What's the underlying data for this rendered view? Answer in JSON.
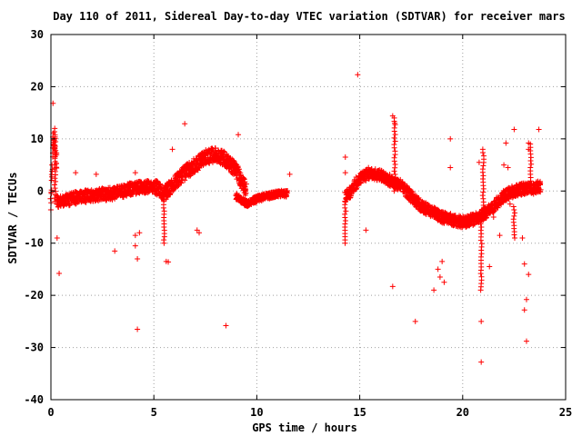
{
  "chart_data": {
    "type": "scatter",
    "title": "Day 110 of 2011, Sidereal Day-to-day VTEC variation (SDTVAR) for receiver mars",
    "xlabel": "GPS time / hours",
    "ylabel": "SDTVAR / TECUs",
    "xlim": [
      0,
      25
    ],
    "ylim": [
      -40,
      30
    ],
    "x_ticks": [
      0,
      5,
      10,
      15,
      20,
      25
    ],
    "y_ticks": [
      30,
      20,
      10,
      0,
      -10,
      -20,
      -30,
      -40
    ],
    "grid": true,
    "marker": "+",
    "colors": {
      "series": "#ff0000",
      "grid": "#a0a0a0",
      "axes": "#000000"
    },
    "band_segments": [
      {
        "x": [
          0.0,
          0.1,
          0.2,
          0.3
        ],
        "y": [
          -2.5,
          10.0,
          9.0,
          4.0
        ],
        "spread": 2.5
      },
      {
        "x": [
          0.3,
          1.0,
          2.0,
          3.0,
          4.0,
          5.0
        ],
        "y": [
          -2.0,
          -1.5,
          -0.8,
          -0.5,
          0.5,
          1.0
        ],
        "spread": 2.4
      },
      {
        "x": [
          5.0,
          5.5,
          6.0,
          6.5,
          7.0,
          7.5,
          8.0,
          8.5,
          9.0,
          9.5
        ],
        "y": [
          1.0,
          -0.5,
          1.5,
          3.5,
          5.0,
          6.5,
          7.0,
          6.0,
          4.0,
          0.0
        ],
        "spread": 2.8
      },
      {
        "x": [
          9.0,
          9.5,
          10.0,
          10.5,
          11.0,
          11.5
        ],
        "y": [
          -1.0,
          -2.5,
          -1.5,
          -1.0,
          -0.5,
          -0.5
        ],
        "spread": 1.2
      },
      {
        "x": [
          14.3,
          14.5,
          15.0,
          15.5,
          16.0,
          16.5,
          17.0,
          17.5,
          18.0,
          18.5,
          19.0
        ],
        "y": [
          -1.0,
          -0.5,
          2.5,
          3.5,
          3.0,
          2.0,
          1.0,
          -1.0,
          -3.0,
          -4.0,
          -5.0
        ],
        "spread": 2.2
      },
      {
        "x": [
          19.0,
          19.5,
          20.0,
          20.5,
          21.0,
          21.5,
          22.0,
          22.5,
          23.0,
          23.5,
          23.8
        ],
        "y": [
          -5.0,
          -5.5,
          -6.0,
          -5.5,
          -4.5,
          -3.0,
          -1.0,
          0.0,
          0.5,
          0.5,
          1.0
        ],
        "spread": 2.2
      }
    ],
    "spikes": [
      {
        "x": 0.2,
        "y0": -2,
        "y1": 12
      },
      {
        "x": 5.5,
        "y0": -2,
        "y1": -10
      },
      {
        "x": 14.3,
        "y0": -2,
        "y1": -10
      },
      {
        "x": 16.7,
        "y0": 0,
        "y1": 14
      },
      {
        "x": 20.9,
        "y0": -5,
        "y1": -19
      },
      {
        "x": 21.0,
        "y0": -4,
        "y1": 8
      },
      {
        "x": 22.5,
        "y0": -3,
        "y1": -9
      },
      {
        "x": 23.3,
        "y0": 0,
        "y1": 9
      }
    ],
    "outliers": [
      [
        0.1,
        16.8
      ],
      [
        0.3,
        -9.0
      ],
      [
        0.4,
        -15.8
      ],
      [
        1.2,
        3.5
      ],
      [
        2.2,
        3.2
      ],
      [
        3.1,
        -11.5
      ],
      [
        4.2,
        -26.5
      ],
      [
        4.1,
        -8.5
      ],
      [
        4.1,
        -10.5
      ],
      [
        4.2,
        -13.0
      ],
      [
        4.3,
        -8.0
      ],
      [
        4.1,
        3.5
      ],
      [
        5.6,
        -13.5
      ],
      [
        5.7,
        -13.6
      ],
      [
        5.9,
        8.0
      ],
      [
        6.5,
        12.9
      ],
      [
        7.1,
        -7.5
      ],
      [
        7.2,
        -8.0
      ],
      [
        8.5,
        -25.8
      ],
      [
        9.1,
        10.8
      ],
      [
        9.0,
        4.5
      ],
      [
        11.6,
        3.2
      ],
      [
        14.3,
        6.5
      ],
      [
        14.3,
        3.5
      ],
      [
        14.9,
        22.3
      ],
      [
        15.3,
        -7.5
      ],
      [
        16.6,
        14.4
      ],
      [
        16.7,
        13.0
      ],
      [
        16.6,
        -18.3
      ],
      [
        17.7,
        -25.0
      ],
      [
        18.6,
        -19.0
      ],
      [
        18.8,
        -15.0
      ],
      [
        18.9,
        -16.5
      ],
      [
        19.0,
        -13.5
      ],
      [
        19.1,
        -17.5
      ],
      [
        19.4,
        10.0
      ],
      [
        19.4,
        4.5
      ],
      [
        20.9,
        -25.0
      ],
      [
        20.9,
        -32.8
      ],
      [
        21.3,
        -14.5
      ],
      [
        21.8,
        -8.5
      ],
      [
        22.1,
        9.2
      ],
      [
        22.5,
        11.8
      ],
      [
        22.9,
        -9.0
      ],
      [
        23.0,
        -14.0
      ],
      [
        23.0,
        -22.8
      ],
      [
        23.2,
        -16.0
      ],
      [
        23.1,
        -20.8
      ],
      [
        23.1,
        -28.8
      ],
      [
        23.2,
        9.2
      ],
      [
        23.2,
        8.0
      ],
      [
        23.7,
        11.8
      ],
      [
        22.0,
        5.0
      ],
      [
        22.2,
        4.5
      ],
      [
        21.5,
        -5.0
      ],
      [
        22.3,
        -2.5
      ],
      [
        20.8,
        5.5
      ]
    ]
  }
}
